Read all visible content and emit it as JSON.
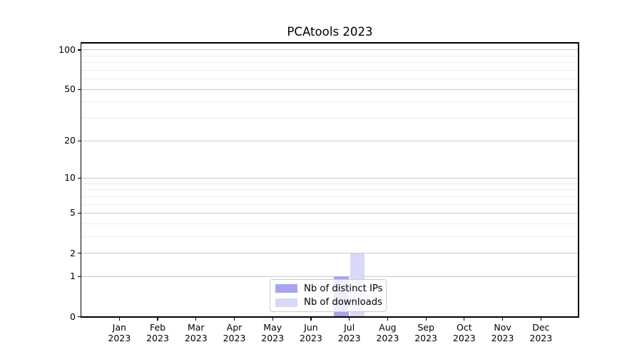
{
  "chart_data": {
    "type": "bar",
    "title": "PCAtools 2023",
    "categories": [
      "Jan",
      "Feb",
      "Mar",
      "Apr",
      "May",
      "Jun",
      "Jul",
      "Aug",
      "Sep",
      "Oct",
      "Nov",
      "Dec"
    ],
    "year_label": "2023",
    "series": [
      {
        "name": "Nb of distinct IPs",
        "color": "#a5a5f0",
        "values": [
          0,
          0,
          0,
          0,
          0,
          0,
          1,
          0,
          0,
          0,
          0,
          0
        ]
      },
      {
        "name": "Nb of downloads",
        "color": "#d8d8f7",
        "values": [
          0,
          0,
          0,
          0,
          0,
          0,
          2,
          0,
          0,
          0,
          0,
          0
        ]
      }
    ],
    "xlabel": "",
    "ylabel": "",
    "y_axis": {
      "scale": "log1p",
      "major_ticks": [
        0,
        1,
        2,
        5,
        10,
        20,
        50,
        100
      ],
      "minor_ticks": [
        3,
        4,
        6,
        7,
        8,
        9,
        30,
        40,
        60,
        70,
        80,
        90
      ],
      "ylim": [
        0,
        113
      ]
    },
    "grid": "horizontal",
    "legend": {
      "position": "lower center"
    },
    "colors": {
      "major_grid": "#c9c9c9",
      "minor_grid": "#ececec",
      "axis": "#000000",
      "background": "#ffffff"
    }
  }
}
